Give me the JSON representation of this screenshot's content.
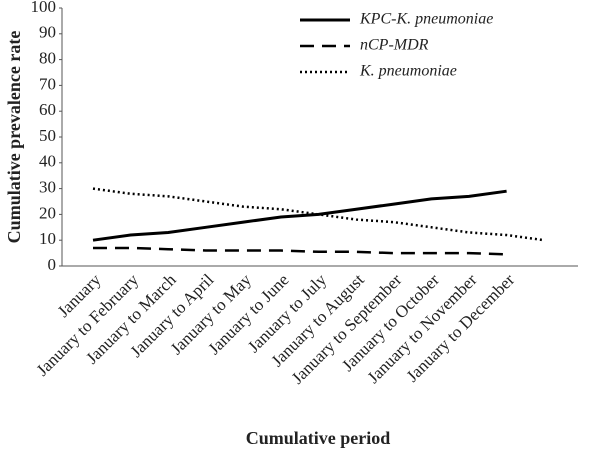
{
  "chart_data": {
    "type": "line",
    "y_label": "Cumulative prevalence rate",
    "x_label": "Cumulative period",
    "categories": [
      "January",
      "January to February",
      "January to March",
      "January to April",
      "January to May",
      "January to June",
      "January to July",
      "January to August",
      "January to September",
      "January to October",
      "January to November",
      "January to December",
      null
    ],
    "series": [
      {
        "name": "KPC-K. pneumoniae",
        "color": "#000000",
        "dash": "solid",
        "values": [
          10,
          12,
          13,
          15,
          17,
          19,
          20,
          22,
          24,
          26,
          27,
          29,
          null
        ]
      },
      {
        "name": "nCP-MDR",
        "color": "#000000",
        "dash": "dashed",
        "values": [
          7,
          7,
          6.5,
          6,
          6,
          6,
          5.5,
          5.5,
          5,
          5,
          5,
          4.5,
          null
        ]
      },
      {
        "name": "K. pneumoniae",
        "color": "#000000",
        "dash": "dotted",
        "values": [
          30,
          28,
          27,
          25,
          23,
          22,
          20,
          18,
          17,
          15,
          13,
          12,
          10
        ]
      }
    ],
    "ylim": [
      0,
      100
    ],
    "yticks": [
      0,
      10,
      20,
      30,
      40,
      50,
      60,
      70,
      80,
      90,
      100
    ],
    "grid": false,
    "legend": "top-right"
  }
}
